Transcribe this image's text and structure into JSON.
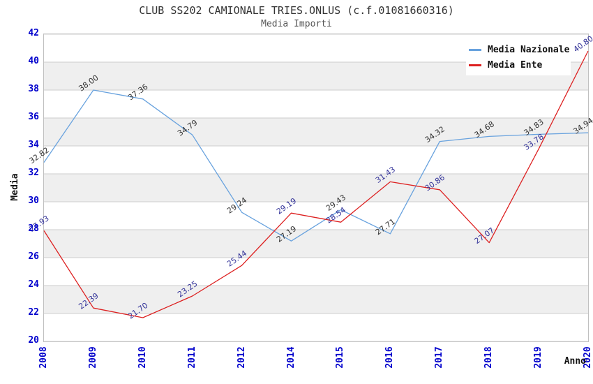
{
  "title": "CLUB SS202 CAMIONALE TRIES.ONLUS (c.f.01081660316)",
  "subtitle": "Media Importi",
  "chart_data": {
    "type": "line",
    "x": [
      "2008",
      "2009",
      "2010",
      "2011",
      "2012",
      "2014",
      "2015",
      "2016",
      "2017",
      "2018",
      "2019",
      "2020"
    ],
    "series": [
      {
        "name": "Media Nazionale",
        "color": "#68a2de",
        "label_color": "#333333",
        "values": [
          32.82,
          38.0,
          37.36,
          34.79,
          29.24,
          27.19,
          29.43,
          27.71,
          34.32,
          34.68,
          34.83,
          34.94
        ]
      },
      {
        "name": "Media Ente",
        "color": "#dd2121",
        "label_color": "#333399",
        "values": [
          27.93,
          22.39,
          21.7,
          23.25,
          25.44,
          29.19,
          28.54,
          31.43,
          30.86,
          27.07,
          33.78,
          40.8
        ]
      }
    ],
    "xlabel": "Anno",
    "ylabel": "Media",
    "ylim": [
      20,
      42
    ],
    "ytick_step": 2,
    "legend_position": "top-right",
    "grid": "horizontal-bands",
    "colors": {
      "band": "#efefef",
      "grid": "#cccccc",
      "border": "#c0c0c0",
      "tick_label": "#0000cc"
    }
  }
}
